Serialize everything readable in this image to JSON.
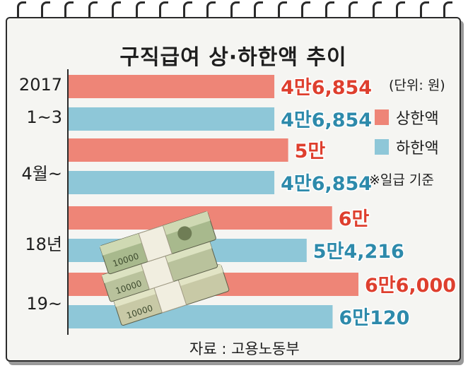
{
  "title": "구직급여 상·하한액 추이",
  "unit_label": "(단위: 원)",
  "note": "※일급 기준",
  "source": "자료 : 고용노동부",
  "colors": {
    "upper": "#ee8577",
    "lower": "#8ec7d8",
    "upper_text": "#de3f2e",
    "lower_text": "#2d8aab"
  },
  "categories": [
    {
      "lines": [
        "2017",
        "1~3"
      ]
    },
    {
      "lines": [
        "4월~"
      ]
    },
    {
      "lines": [
        "18년"
      ]
    },
    {
      "lines": [
        "19~"
      ]
    }
  ],
  "chart_data": {
    "type": "bar",
    "orientation": "horizontal",
    "title": "구직급여 상·하한액 추이",
    "categories": [
      "2017 1~3",
      "4월~",
      "18년",
      "19~"
    ],
    "series": [
      {
        "name": "상한액",
        "values": [
          46854,
          50000,
          60000,
          66000
        ],
        "labels": [
          "4만6,854",
          "5만",
          "6만",
          "6만6,000"
        ]
      },
      {
        "name": "하한액",
        "values": [
          46854,
          46854,
          54216,
          60120
        ],
        "labels": [
          "4만6,854",
          "4만6,854",
          "5만4,216",
          "6만120"
        ]
      }
    ],
    "legend": "right"
  }
}
